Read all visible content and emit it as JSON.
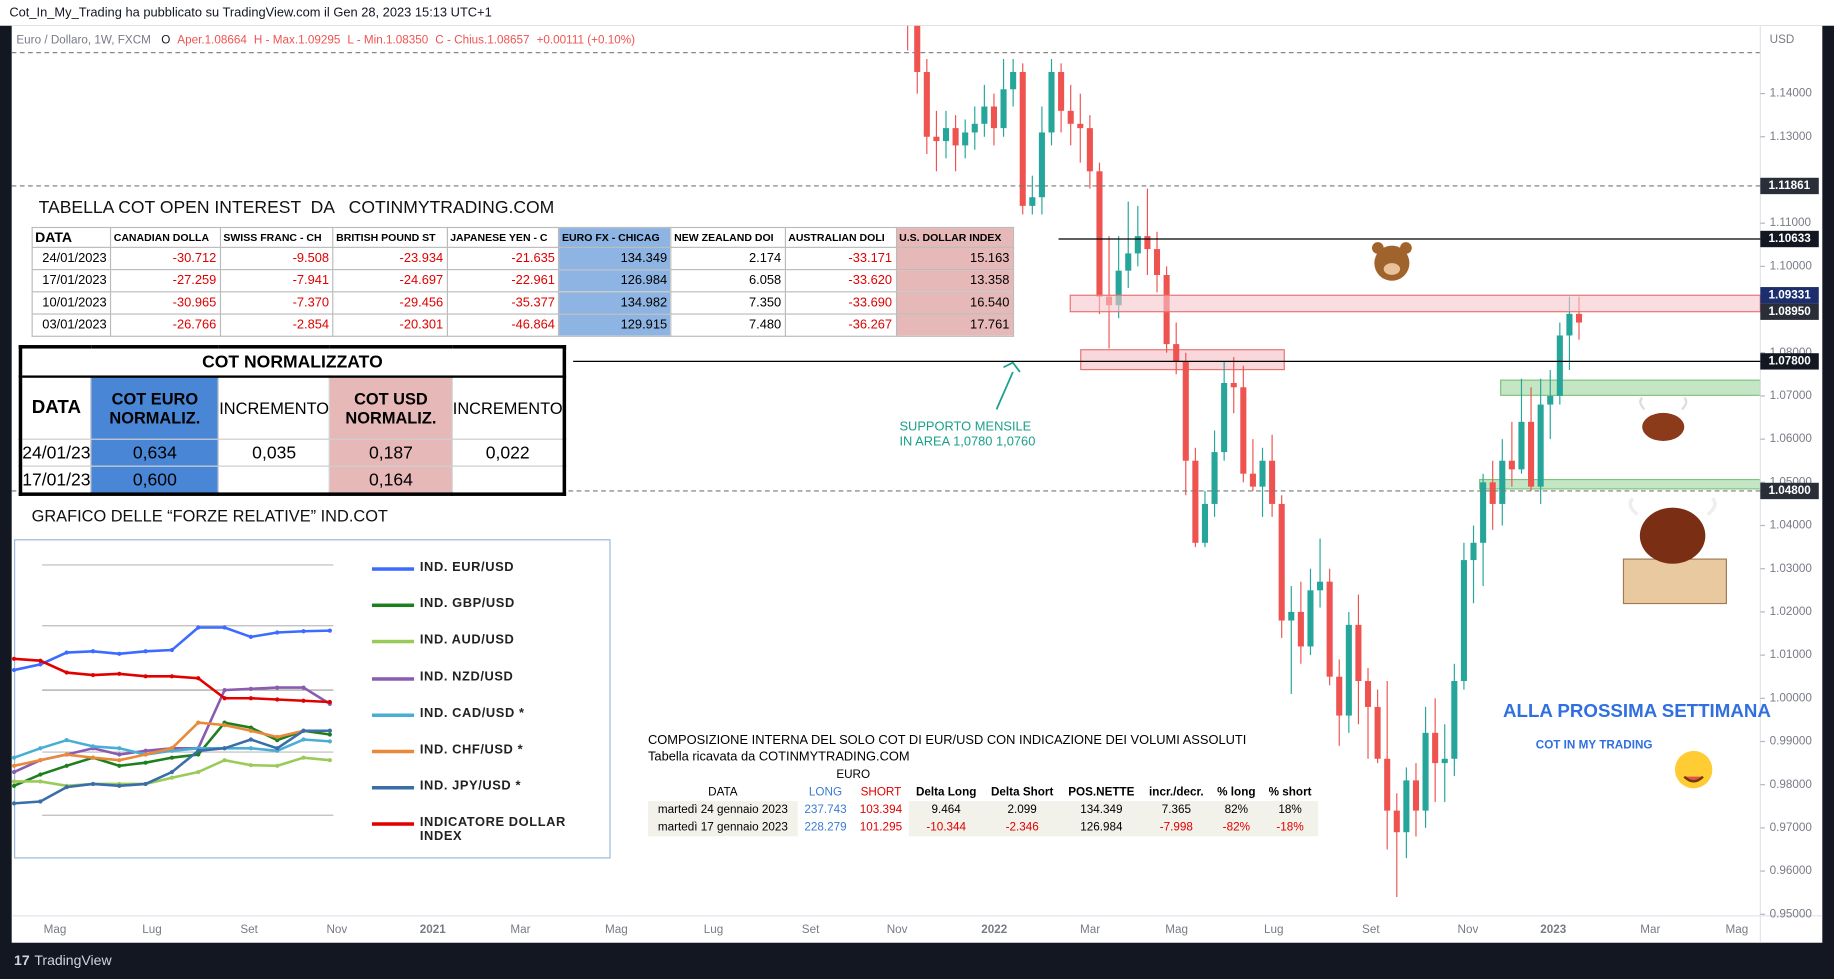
{
  "header": {
    "publisher": "Cot_In_My_Trading ha pubblicato su TradingView.com il Gen 28, 2023 15:13 UTC+1"
  },
  "legend": {
    "symbol": "Euro / Dollaro, 1W, FXCM",
    "ohlc": [
      "O",
      "Aper.1.08664",
      "H - Max.1.09295",
      "L - Min.1.08350",
      "C - Chius.1.08657",
      "+0.00111 (+0.10%)"
    ]
  },
  "price_axis": {
    "currency": "USD",
    "ticks": [
      {
        "value": 1.14,
        "label": "1.14000"
      },
      {
        "value": 1.13,
        "label": "1.13000"
      },
      {
        "value": 1.11,
        "label": "1.11000"
      },
      {
        "value": 1.1,
        "label": "1.10000"
      },
      {
        "value": 1.08,
        "label": "1.08000"
      },
      {
        "value": 1.07,
        "label": "1.07000"
      },
      {
        "value": 1.06,
        "label": "1.06000"
      },
      {
        "value": 1.05,
        "label": "1.05000"
      },
      {
        "value": 1.04,
        "label": "1.04000"
      },
      {
        "value": 1.03,
        "label": "1.03000"
      },
      {
        "value": 1.02,
        "label": "1.02000"
      },
      {
        "value": 1.01,
        "label": "1.01000"
      },
      {
        "value": 1.0,
        "label": "1.00000"
      },
      {
        "value": 0.99,
        "label": "0.99000"
      },
      {
        "value": 0.98,
        "label": "0.98000"
      },
      {
        "value": 0.97,
        "label": "0.97000"
      },
      {
        "value": 0.96,
        "label": "0.96000"
      },
      {
        "value": 0.95,
        "label": "0.95000"
      }
    ],
    "levels": [
      {
        "value": 1.11861,
        "label": "1.11861"
      },
      {
        "value": 1.10633,
        "label": "1.10633"
      },
      {
        "value": 1.09331,
        "label": "1.09331"
      },
      {
        "value": 1.0895,
        "label": "1.08950"
      },
      {
        "value": 1.078,
        "label": "1.07800"
      },
      {
        "value": 1.048,
        "label": "1.04800"
      }
    ]
  },
  "time_axis": {
    "labels": [
      "Mag",
      "Lug",
      "Set",
      "Nov",
      "2021",
      "Mar",
      "Mag",
      "Lug",
      "Set",
      "Nov",
      "2022",
      "Mar",
      "Mag",
      "Lug",
      "Set",
      "Nov",
      "2023",
      "Mar",
      "Mag"
    ]
  },
  "candles": [
    [
      1.16,
      1.164,
      1.15,
      1.156
    ],
    [
      1.156,
      1.159,
      1.14,
      1.145
    ],
    [
      1.145,
      1.148,
      1.126,
      1.13
    ],
    [
      1.13,
      1.136,
      1.122,
      1.129
    ],
    [
      1.129,
      1.136,
      1.125,
      1.132
    ],
    [
      1.132,
      1.135,
      1.122,
      1.128
    ],
    [
      1.128,
      1.134,
      1.125,
      1.131
    ],
    [
      1.131,
      1.137,
      1.127,
      1.133
    ],
    [
      1.133,
      1.142,
      1.13,
      1.137
    ],
    [
      1.137,
      1.14,
      1.128,
      1.132
    ],
    [
      1.132,
      1.148,
      1.13,
      1.141
    ],
    [
      1.141,
      1.148,
      1.137,
      1.145
    ],
    [
      1.145,
      1.147,
      1.112,
      1.114
    ],
    [
      1.114,
      1.121,
      1.112,
      1.116
    ],
    [
      1.116,
      1.137,
      1.112,
      1.131
    ],
    [
      1.131,
      1.148,
      1.128,
      1.145
    ],
    [
      1.145,
      1.147,
      1.131,
      1.136
    ],
    [
      1.136,
      1.142,
      1.128,
      1.133
    ],
    [
      1.133,
      1.14,
      1.124,
      1.132
    ],
    [
      1.132,
      1.135,
      1.118,
      1.122
    ],
    [
      1.122,
      1.124,
      1.089,
      1.093
    ],
    [
      1.093,
      1.107,
      1.081,
      1.091
    ],
    [
      1.091,
      1.107,
      1.088,
      1.099
    ],
    [
      1.099,
      1.115,
      1.095,
      1.103
    ],
    [
      1.103,
      1.114,
      1.1,
      1.107
    ],
    [
      1.107,
      1.118,
      1.098,
      1.104
    ],
    [
      1.104,
      1.108,
      1.094,
      1.098
    ],
    [
      1.098,
      1.1,
      1.08,
      1.082
    ],
    [
      1.082,
      1.087,
      1.075,
      1.078
    ],
    [
      1.078,
      1.08,
      1.047,
      1.055
    ],
    [
      1.055,
      1.058,
      1.035,
      1.036
    ],
    [
      1.036,
      1.048,
      1.035,
      1.045
    ],
    [
      1.045,
      1.062,
      1.042,
      1.057
    ],
    [
      1.057,
      1.078,
      1.055,
      1.073
    ],
    [
      1.073,
      1.079,
      1.066,
      1.072
    ],
    [
      1.072,
      1.077,
      1.05,
      1.052
    ],
    [
      1.052,
      1.06,
      1.048,
      1.049
    ],
    [
      1.049,
      1.058,
      1.042,
      1.055
    ],
    [
      1.055,
      1.061,
      1.042,
      1.045
    ],
    [
      1.045,
      1.047,
      1.014,
      1.018
    ],
    [
      1.018,
      1.026,
      1.001,
      1.02
    ],
    [
      1.02,
      1.027,
      1.008,
      1.012
    ],
    [
      1.012,
      1.03,
      1.01,
      1.025
    ],
    [
      1.025,
      1.037,
      1.021,
      1.027
    ],
    [
      1.027,
      1.03,
      1.003,
      1.005
    ],
    [
      1.005,
      1.009,
      0.989,
      0.996
    ],
    [
      0.996,
      1.02,
      0.992,
      1.017
    ],
    [
      1.017,
      1.024,
      0.994,
      1.004
    ],
    [
      1.004,
      1.007,
      0.986,
      0.998
    ],
    [
      0.998,
      1.002,
      0.985,
      0.986
    ],
    [
      0.986,
      1.004,
      0.965,
      0.974
    ],
    [
      0.974,
      0.978,
      0.954,
      0.969
    ],
    [
      0.969,
      0.984,
      0.963,
      0.981
    ],
    [
      0.981,
      0.985,
      0.968,
      0.974
    ],
    [
      0.974,
      0.998,
      0.97,
      0.992
    ],
    [
      0.992,
      1.0,
      0.976,
      0.985
    ],
    [
      0.985,
      0.994,
      0.976,
      0.986
    ],
    [
      0.986,
      1.008,
      0.982,
      1.004
    ],
    [
      1.004,
      1.036,
      1.002,
      1.032
    ],
    [
      1.032,
      1.04,
      1.022,
      1.036
    ],
    [
      1.036,
      1.052,
      1.026,
      1.05
    ],
    [
      1.05,
      1.055,
      1.039,
      1.045
    ],
    [
      1.045,
      1.06,
      1.04,
      1.055
    ],
    [
      1.055,
      1.064,
      1.049,
      1.053
    ],
    [
      1.053,
      1.074,
      1.052,
      1.064
    ],
    [
      1.064,
      1.072,
      1.048,
      1.049
    ],
    [
      1.049,
      1.074,
      1.045,
      1.068
    ],
    [
      1.068,
      1.076,
      1.06,
      1.07
    ],
    [
      1.07,
      1.087,
      1.068,
      1.084
    ],
    [
      1.084,
      1.093,
      1.076,
      1.089
    ],
    [
      1.089,
      1.093,
      1.083,
      1.087
    ]
  ],
  "annotations": {
    "support": [
      "SUPPORTO MENSILE",
      "IN AREA 1,0780 1,0760"
    ],
    "next_week": "ALLA PROSSIMA SETTIMANA",
    "brand": "COT IN MY TRADING"
  },
  "open_interest": {
    "title": "TABELLA COT OPEN INTEREST  DA   COTINMYTRADING.COM",
    "columns": [
      "DATA",
      "CANADIAN DOLLA",
      "SWISS FRANC - CH",
      "BRITISH POUND ST",
      "JAPANESE YEN - C",
      "EURO FX - CHICAG",
      "NEW ZEALAND DOI",
      "AUSTRALIAN DOLI",
      "U.S. DOLLAR INDEX"
    ],
    "rows": [
      [
        "24/01/2023",
        "-30.712",
        "-9.508",
        "-23.934",
        "-21.635",
        "134.349",
        "2.174",
        "-33.171",
        "15.163"
      ],
      [
        "17/01/2023",
        "-27.259",
        "-7.941",
        "-24.697",
        "-22.961",
        "126.984",
        "6.058",
        "-33.620",
        "13.358"
      ],
      [
        "10/01/2023",
        "-30.965",
        "-7.370",
        "-29.456",
        "-35.377",
        "134.982",
        "7.350",
        "-33.690",
        "16.540"
      ],
      [
        "03/01/2023",
        "-26.766",
        "-2.854",
        "-20.301",
        "-46.864",
        "129.915",
        "7.480",
        "-36.267",
        "17.761"
      ]
    ]
  },
  "normalized": {
    "title": "COT NORMALIZZATO",
    "columns": [
      "DATA",
      "COT EURO NORMALIZ.",
      "INCREMENTO",
      "COT USD NORMALIZ.",
      "INCREMENTO"
    ],
    "rows": [
      [
        "24/01/23",
        "0,634",
        "0,035",
        "0,187",
        "0,022"
      ],
      [
        "17/01/23",
        "0,600",
        null,
        "0,164",
        null
      ]
    ]
  },
  "relative_strength": {
    "title": "GRAFICO DELLE “FORZE RELATIVE” IND.COT",
    "type": "line",
    "ylim": [
      0,
      4
    ],
    "series": [
      {
        "name": "IND. EUR/USD",
        "color": "#3d6bff",
        "values": [
          2.32,
          2.41,
          2.6,
          2.62,
          2.58,
          2.62,
          2.64,
          3.0,
          3.0,
          2.85,
          2.92,
          2.94,
          2.95
        ]
      },
      {
        "name": "IND. GBP/USD",
        "color": "#1d7f1d",
        "values": [
          0.47,
          0.65,
          0.79,
          0.92,
          0.79,
          0.84,
          0.92,
          0.97,
          1.48,
          1.4,
          1.2,
          1.35,
          1.29
        ]
      },
      {
        "name": "IND. AUD/USD",
        "color": "#9acb5a",
        "values": [
          0.54,
          0.54,
          0.47,
          0.5,
          0.5,
          0.5,
          0.6,
          0.69,
          0.88,
          0.8,
          0.79,
          0.92,
          0.88
        ]
      },
      {
        "name": "IND. NZD/USD",
        "color": "#8a5cb0",
        "values": [
          0.69,
          0.88,
          0.97,
          1.07,
          0.97,
          1.03,
          1.07,
          1.07,
          2.0,
          2.02,
          2.04,
          2.04,
          1.78
        ]
      },
      {
        "name": "IND. CAD/USD *",
        "color": "#4aaed4",
        "values": [
          0.92,
          1.07,
          1.2,
          1.1,
          1.07,
          0.97,
          1.03,
          1.07,
          1.07,
          1.07,
          1.03,
          1.21,
          1.18
        ]
      },
      {
        "name": "IND. CHF/USD *",
        "color": "#e88a3a",
        "values": [
          0.79,
          0.88,
          0.97,
          0.92,
          0.88,
          0.97,
          1.07,
          1.48,
          1.44,
          1.35,
          1.25,
          1.35,
          1.35
        ]
      },
      {
        "name": "IND. JPY/USD *",
        "color": "#3a6ea8",
        "values": [
          0.19,
          0.22,
          0.45,
          0.5,
          0.47,
          0.5,
          0.69,
          1.03,
          1.07,
          1.21,
          1.07,
          1.35,
          1.35
        ]
      },
      {
        "name": "INDICATORE DOLLAR INDEX",
        "color": "#e00000",
        "values": [
          2.5,
          2.47,
          2.28,
          2.24,
          2.26,
          2.22,
          2.22,
          2.19,
          1.87,
          1.87,
          1.85,
          1.83,
          1.81
        ]
      }
    ]
  },
  "eurusd_composition": {
    "title": "COMPOSIZIONE INTERNA DEL SOLO COT DI EUR/USD CON INDICAZIONE DEI VOLUMI ASSOLUTI",
    "subtitle": "Tabella ricavata da COTINMYTRADING.COM",
    "group": "EURO",
    "columns": [
      "DATA",
      "LONG",
      "SHORT",
      "Delta Long",
      "Delta Short",
      "POS.NETTE",
      "incr./decr.",
      "% long",
      "% short"
    ],
    "rows": [
      [
        "martedì 24 gennaio 2023",
        "237.743",
        "103.394",
        "9.464",
        "2.099",
        "134.349",
        "7.365",
        "82%",
        "18%"
      ],
      [
        "martedì 17 gennaio 2023",
        "228.279",
        "101.295",
        "-10.344",
        "-2.346",
        "126.984",
        "-7.998",
        "-82%",
        "-18%"
      ]
    ]
  },
  "footer": {
    "brand": "TradingView"
  }
}
